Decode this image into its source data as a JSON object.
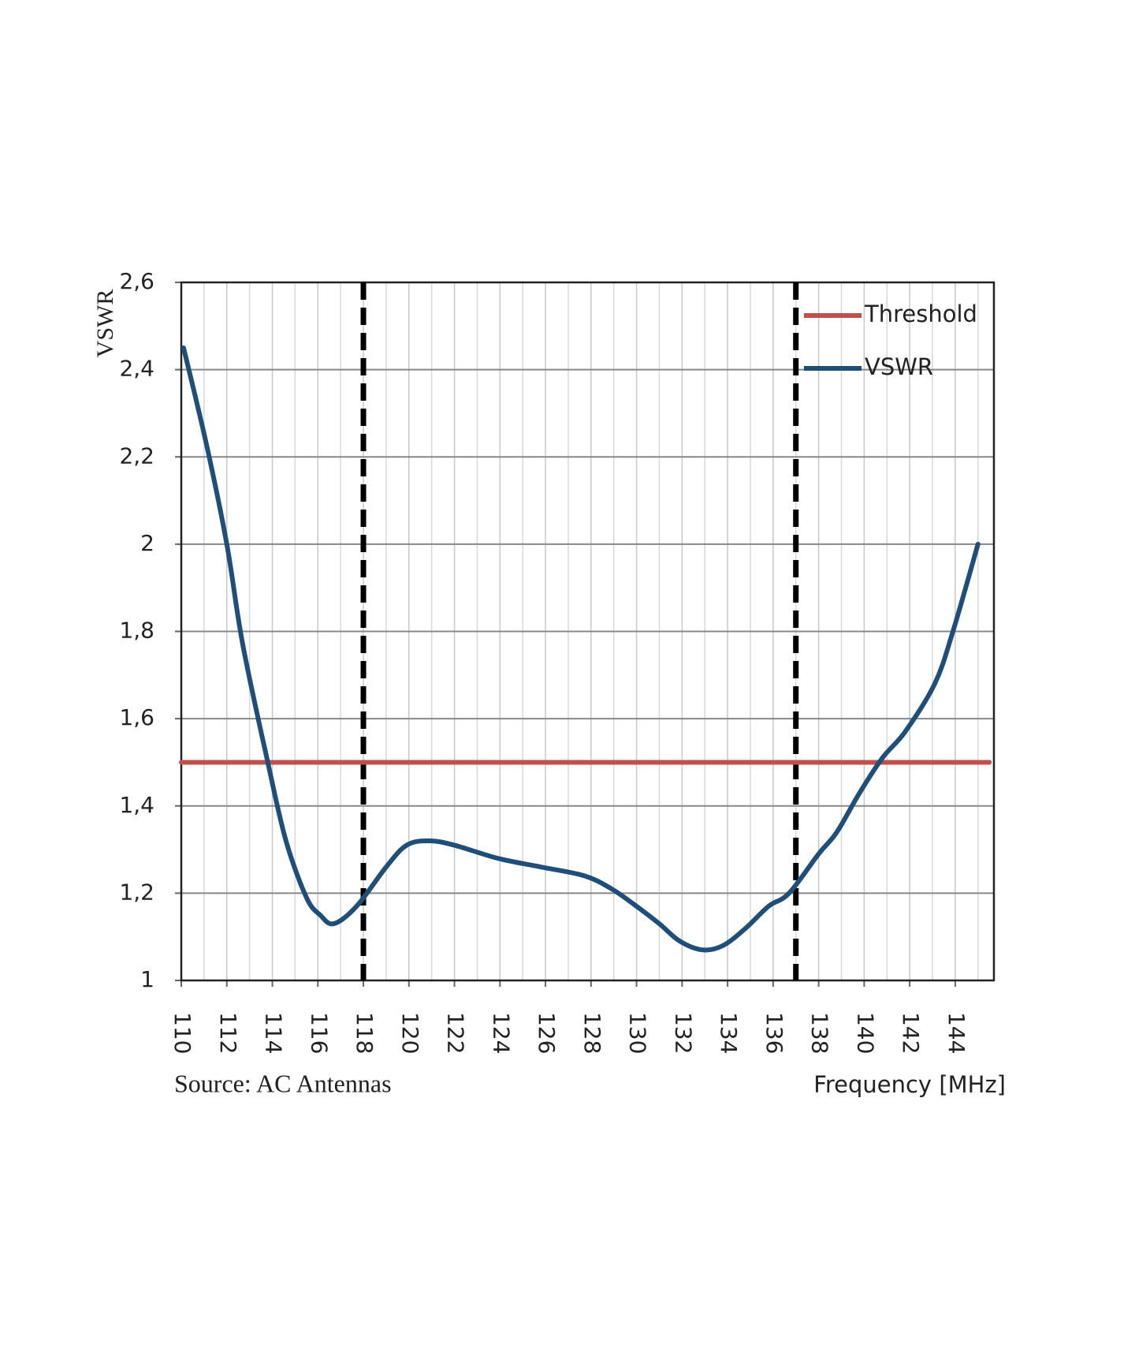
{
  "chart_data": {
    "type": "line",
    "y_label": "VSWR",
    "x_label": "Frequency [MHz]",
    "source": "Source: AC Antennas",
    "xlim": [
      110,
      145.7
    ],
    "ylim": [
      1,
      2.6
    ],
    "xticks": [
      110,
      112,
      114,
      116,
      118,
      120,
      122,
      124,
      126,
      128,
      130,
      132,
      134,
      136,
      138,
      140,
      142,
      144
    ],
    "yticks": [
      1,
      {
        "value": 1.2,
        "label": "1,2"
      },
      {
        "value": 1.4,
        "label": "1,4"
      },
      {
        "value": 1.6,
        "label": "1,6"
      },
      {
        "value": 1.8,
        "label": "1,8"
      },
      2,
      {
        "value": 2.2,
        "label": "2,2"
      },
      {
        "value": 2.4,
        "label": "2,4"
      },
      {
        "value": 2.6,
        "label": "2,6"
      }
    ],
    "grid": true,
    "vlines": [
      118,
      137
    ],
    "legend": "top-right",
    "series": [
      {
        "name": "Threshold",
        "color": "#c0504d",
        "x": [
          110,
          145.5
        ],
        "values": [
          1.5,
          1.5
        ]
      },
      {
        "name": "VSWR",
        "color": "#1f4e79",
        "x": [
          110.1,
          111.1,
          112,
          112.7,
          113.8,
          114.6,
          115.5,
          116.1,
          116.7,
          117.7,
          119,
          119.9,
          120.9,
          122,
          123.9,
          125.8,
          127.7,
          128.9,
          130,
          131,
          131.9,
          132.9,
          133.8,
          134.8,
          135.8,
          136.7,
          138,
          138.8,
          139.8,
          140.8,
          141.8,
          143.1,
          143.9,
          145
        ],
        "values": [
          2.45,
          2.23,
          2.0,
          1.77,
          1.5,
          1.32,
          1.19,
          1.15,
          1.13,
          1.17,
          1.26,
          1.31,
          1.32,
          1.31,
          1.28,
          1.26,
          1.24,
          1.21,
          1.17,
          1.13,
          1.09,
          1.07,
          1.08,
          1.12,
          1.17,
          1.2,
          1.29,
          1.34,
          1.43,
          1.51,
          1.57,
          1.68,
          1.8,
          2.0
        ]
      }
    ]
  }
}
